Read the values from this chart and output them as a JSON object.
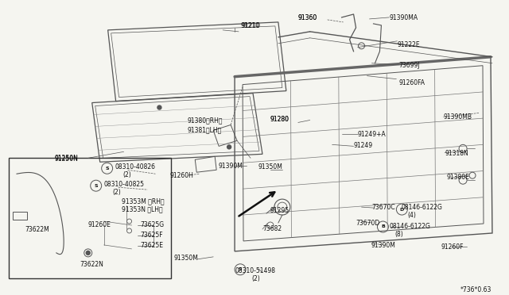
{
  "bg_color": "#f5f5f0",
  "diagram_ref": "*736*0.63",
  "line_color": "#555555",
  "text_color": "#111111",
  "label_fs": 5.5,
  "parts_labels": [
    [
      315,
      42,
      "91210"
    ],
    [
      110,
      193,
      "91250N"
    ],
    [
      355,
      148,
      "91280"
    ],
    [
      381,
      18,
      "91360"
    ],
    [
      530,
      18,
      "91390MA"
    ],
    [
      533,
      48,
      "91222E"
    ],
    [
      527,
      78,
      "73699J"
    ],
    [
      527,
      103,
      "91260FA"
    ],
    [
      575,
      140,
      "91390MB"
    ],
    [
      237,
      148,
      "91380（RH）"
    ],
    [
      237,
      160,
      "91381（LH）"
    ],
    [
      437,
      166,
      "91249+A"
    ],
    [
      430,
      179,
      "91249"
    ],
    [
      570,
      193,
      "91318N"
    ],
    [
      575,
      220,
      "91380E"
    ],
    [
      275,
      208,
      "91390M"
    ],
    [
      213,
      218,
      "91260H"
    ],
    [
      320,
      210,
      "91350M"
    ],
    [
      298,
      265,
      "91295"
    ],
    [
      294,
      288,
      "73682"
    ],
    [
      455,
      263,
      "73670C"
    ],
    [
      445,
      283,
      "73670D"
    ],
    [
      515,
      265,
      "08146-6122G"
    ],
    [
      523,
      275,
      "(4)"
    ],
    [
      497,
      287,
      "08146-6122G"
    ],
    [
      504,
      297,
      "(8)"
    ],
    [
      449,
      310,
      "91390M"
    ],
    [
      546,
      313,
      "91260F"
    ],
    [
      247,
      320,
      "91350M"
    ],
    [
      310,
      340,
      "08310-51498"
    ],
    [
      320,
      350,
      "(2)"
    ]
  ],
  "inset_labels": [
    [
      148,
      212,
      "08310-40826"
    ],
    [
      159,
      222,
      "(2)"
    ],
    [
      132,
      234,
      "08310-40825"
    ],
    [
      143,
      244,
      "(2)"
    ],
    [
      157,
      255,
      "91353M (RH)"
    ],
    [
      157,
      265,
      "91353N (LH)"
    ],
    [
      112,
      285,
      "91260E"
    ],
    [
      178,
      292,
      "73625G"
    ],
    [
      178,
      302,
      "73625F"
    ],
    [
      178,
      312,
      "73625E"
    ],
    [
      45,
      292,
      "73622M"
    ],
    [
      108,
      335,
      "73622N"
    ]
  ],
  "circled_s": [
    [
      134,
      213,
      "S"
    ],
    [
      120,
      235,
      "S"
    ],
    [
      302,
      341,
      "S"
    ]
  ],
  "circled_b": [
    [
      482,
      287
    ]
  ],
  "circled_d": [
    [
      506,
      265
    ]
  ]
}
